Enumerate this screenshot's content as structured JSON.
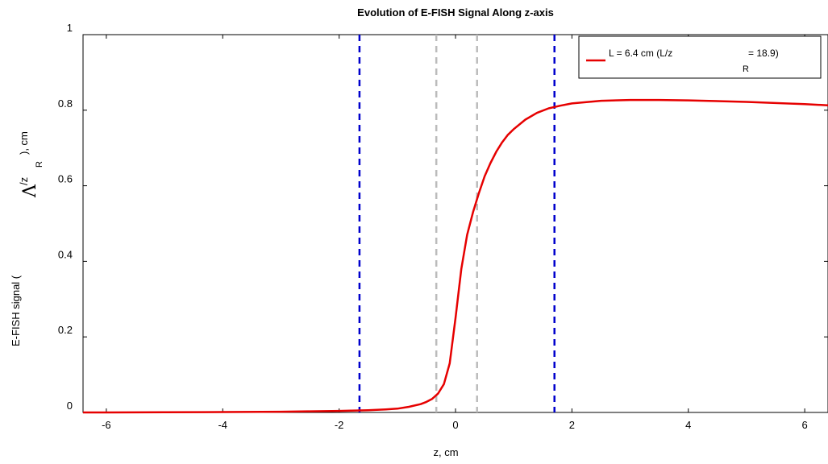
{
  "chart_data": {
    "type": "line",
    "title": "Evolution of E-FISH Signal Along z-axis",
    "xlabel": "z, cm",
    "ylabel": {
      "prefix": "E-FISH signal (",
      "symbol": "Λ",
      "superscript": "/z",
      "subscript": "R",
      "suffix": "), cm"
    },
    "xlim": [
      -6.4,
      6.4
    ],
    "ylim": [
      0,
      1
    ],
    "xticks": [
      -6,
      -4,
      -2,
      0,
      2,
      4,
      6
    ],
    "xtick_labels": [
      "-6",
      "-4",
      "-2",
      "0",
      "2",
      "4",
      "6"
    ],
    "yticks": [
      0,
      0.2,
      0.4,
      0.6,
      0.8,
      1
    ],
    "ytick_labels": [
      "0",
      "0.2",
      "0.4",
      "0.6",
      "0.8",
      "1"
    ],
    "grid": false,
    "legend_position": "top-right",
    "series": [
      {
        "name": "L = 6.4 cm (L/z_R = 18.9)",
        "legend": {
          "main": "L = 6.4 cm (L/z",
          "subscript": "R",
          "tail": " = 18.9)"
        },
        "color": "#e60000",
        "x": [
          -6.4,
          -6,
          -5,
          -4,
          -3,
          -2.5,
          -2,
          -1.5,
          -1.2,
          -1.0,
          -0.8,
          -0.6,
          -0.5,
          -0.4,
          -0.3,
          -0.2,
          -0.1,
          0,
          0.1,
          0.2,
          0.3,
          0.4,
          0.5,
          0.6,
          0.7,
          0.8,
          0.9,
          1.0,
          1.2,
          1.4,
          1.6,
          1.8,
          2.0,
          2.5,
          3.0,
          3.5,
          4.0,
          5.0,
          6.0,
          6.4
        ],
        "y": [
          0.0,
          0.0,
          0.0005,
          0.001,
          0.002,
          0.003,
          0.004,
          0.006,
          0.008,
          0.01,
          0.015,
          0.022,
          0.028,
          0.036,
          0.05,
          0.075,
          0.13,
          0.25,
          0.38,
          0.47,
          0.53,
          0.58,
          0.625,
          0.66,
          0.69,
          0.715,
          0.735,
          0.75,
          0.775,
          0.793,
          0.805,
          0.812,
          0.818,
          0.825,
          0.827,
          0.827,
          0.826,
          0.822,
          0.816,
          0.813
        ]
      }
    ],
    "vlines": [
      {
        "x": -1.65,
        "color": "#0000cc",
        "style": "dashed"
      },
      {
        "x": 1.7,
        "color": "#0000cc",
        "style": "dashed"
      },
      {
        "x": -0.33,
        "color": "#bbbbbb",
        "style": "dashed"
      },
      {
        "x": 0.37,
        "color": "#bbbbbb",
        "style": "dashed"
      }
    ]
  }
}
